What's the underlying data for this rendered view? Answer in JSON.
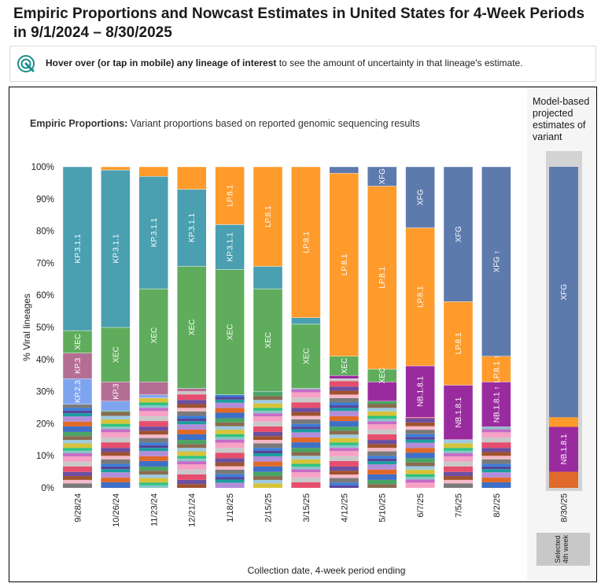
{
  "title": "Empiric Proportions and Nowcast Estimates in United States for 4-Week Periods in 9/1/2024 – 8/30/2025",
  "hint": {
    "bold": "Hover over (or tap in mobile) any lineage of interest",
    "rest": " to see the amount of uncertainty in that lineage's estimate."
  },
  "subtitle": {
    "bold": "Empiric Proportions:",
    "rest": " Variant proportions based on reported genomic sequencing results"
  },
  "projection_title": "Model-based projected estimates of variant",
  "selected_label": "Selected 4th week",
  "colors": {
    "KP.3.1.1": "#4a9fb1",
    "XEC": "#5fad5c",
    "LP.8.1": "#ff9b2b",
    "XFG": "#5d7aad",
    "NB.1.8.1": "#9a2b9f",
    "KP.3": "#b56e93",
    "KP.2.3": "#7fa4ef",
    "other": "#999999"
  },
  "chart_data": {
    "type": "bar",
    "stacked": true,
    "ylabel": "% Viral lineages",
    "xlabel": "Collection date, 4-week period ending",
    "ylim": [
      0,
      100
    ],
    "yticks": [
      "0%",
      "10%",
      "20%",
      "30%",
      "40%",
      "50%",
      "60%",
      "70%",
      "80%",
      "90%",
      "100%"
    ],
    "categories": [
      "9/28/24",
      "10/26/24",
      "11/23/24",
      "12/21/24",
      "1/18/25",
      "2/15/25",
      "3/15/25",
      "4/12/25",
      "5/10/25",
      "6/7/25",
      "7/5/25",
      "8/2/25"
    ],
    "series": [
      {
        "name": "KP.3.1.1",
        "values": [
          51,
          49,
          35,
          24,
          14,
          7,
          2,
          0,
          0,
          0,
          0,
          0
        ]
      },
      {
        "name": "XEC",
        "values": [
          7,
          17,
          29,
          38,
          39,
          32,
          20,
          6,
          4,
          0,
          0,
          0
        ]
      },
      {
        "name": "KP.3",
        "values": [
          8,
          6,
          4,
          1,
          0,
          0,
          0,
          0,
          0,
          0,
          0,
          0
        ]
      },
      {
        "name": "KP.2.3",
        "values": [
          8,
          3,
          1,
          0,
          0,
          0,
          0,
          0,
          0,
          0,
          0,
          0
        ]
      },
      {
        "name": "LP.8.1",
        "values": [
          0,
          1,
          3,
          7,
          18,
          31,
          47,
          57,
          57,
          43,
          26,
          8
        ]
      },
      {
        "name": "XFG",
        "values": [
          0,
          0,
          0,
          0,
          0,
          0,
          0,
          2,
          6,
          19,
          42,
          59
        ]
      },
      {
        "name": "NB.1.8.1",
        "values": [
          0,
          0,
          0,
          0,
          0,
          0,
          0,
          1,
          6,
          16,
          17,
          14
        ]
      }
    ],
    "bar_labels": [
      {
        "bar": 0,
        "series": "KP.3.1.1",
        "text": "KP.3.1.1"
      },
      {
        "bar": 0,
        "series": "XEC",
        "text": "XEC"
      },
      {
        "bar": 0,
        "series": "KP.3",
        "text": "KP.3"
      },
      {
        "bar": 0,
        "series": "KP.2.3",
        "text": "KP.2.3"
      },
      {
        "bar": 1,
        "series": "KP.3.1.1",
        "text": "KP.3.1.1"
      },
      {
        "bar": 1,
        "series": "XEC",
        "text": "XEC"
      },
      {
        "bar": 1,
        "series": "KP.3",
        "text": "KP.3"
      },
      {
        "bar": 2,
        "series": "KP.3.1.1",
        "text": "KP.3.1.1"
      },
      {
        "bar": 2,
        "series": "XEC",
        "text": "XEC"
      },
      {
        "bar": 3,
        "series": "KP.3.1.1",
        "text": "KP.3.1.1"
      },
      {
        "bar": 3,
        "series": "XEC",
        "text": "XEC"
      },
      {
        "bar": 4,
        "series": "LP.8.1",
        "text": "LP.8.1"
      },
      {
        "bar": 4,
        "series": "KP.3.1.1",
        "text": "KP.3.1.1"
      },
      {
        "bar": 4,
        "series": "XEC",
        "text": "XEC"
      },
      {
        "bar": 5,
        "series": "LP.8.1",
        "text": "LP.8.1"
      },
      {
        "bar": 5,
        "series": "XEC",
        "text": "XEC"
      },
      {
        "bar": 6,
        "series": "LP.8.1",
        "text": "LP.8.1"
      },
      {
        "bar": 6,
        "series": "XEC",
        "text": "XEC"
      },
      {
        "bar": 7,
        "series": "LP.8.1",
        "text": "LP.8.1"
      },
      {
        "bar": 7,
        "series": "XEC",
        "text": "XEC"
      },
      {
        "bar": 8,
        "series": "XFG",
        "text": "XFG"
      },
      {
        "bar": 8,
        "series": "LP.8.1",
        "text": "LP.8.1"
      },
      {
        "bar": 8,
        "series": "XEC",
        "text": "XEC"
      },
      {
        "bar": 9,
        "series": "XFG",
        "text": "XFG"
      },
      {
        "bar": 9,
        "series": "LP.8.1",
        "text": "LP.8.1"
      },
      {
        "bar": 9,
        "series": "NB.1.8.1",
        "text": "NB.1.8.1"
      },
      {
        "bar": 10,
        "series": "XFG",
        "text": "XFG"
      },
      {
        "bar": 10,
        "series": "LP.8.1",
        "text": "LP.8.1"
      },
      {
        "bar": 10,
        "series": "NB.1.8.1",
        "text": "NB.1.8.1"
      },
      {
        "bar": 11,
        "series": "XFG",
        "text": "XFG ↑"
      },
      {
        "bar": 11,
        "series": "LP.8.1",
        "text": "LP.8.1 ↑"
      },
      {
        "bar": 11,
        "series": "NB.1.8.1",
        "text": "NB.1.8.1 ↑"
      }
    ],
    "projection": {
      "category": "8/30/25",
      "values": {
        "XFG": 78,
        "LP.8.1": 3,
        "NB.1.8.1": 14,
        "other": 5
      },
      "labels": [
        "XFG",
        "NB.1.8.1"
      ]
    }
  }
}
